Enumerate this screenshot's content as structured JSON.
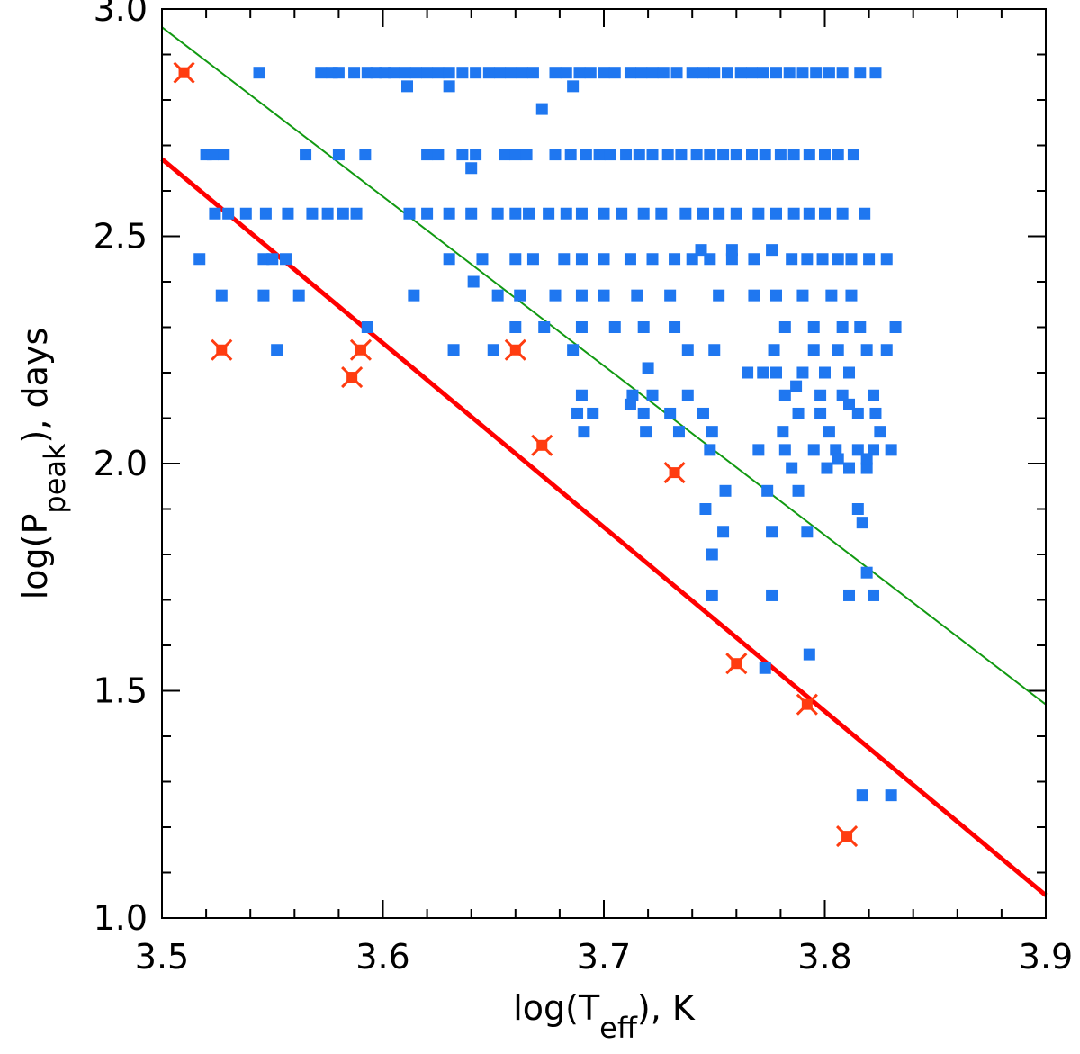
{
  "chart_data": {
    "type": "scatter",
    "title": "",
    "xlim": [
      3.5,
      3.9
    ],
    "ylim": [
      1.0,
      3.0
    ],
    "x_ticks": [
      "3.5",
      "3.6",
      "3.7",
      "3.8",
      "3.9"
    ],
    "y_ticks": [
      "1.0",
      "1.5",
      "2.0",
      "2.5",
      "3.0"
    ],
    "xlabel": {
      "pre": "log(T",
      "sub": "eff",
      "post": "), K"
    },
    "ylabel": {
      "pre": "log(P",
      "sub": "peak",
      "post": "), days"
    },
    "colors": {
      "blue": "#1f77f0",
      "red": "#ff3c10",
      "red_line": "#ff0000",
      "green_line": "#119911"
    },
    "lines": [
      {
        "name": "green-fit",
        "x": [
          3.5,
          3.9
        ],
        "y": [
          2.96,
          1.47
        ],
        "color": "#119911"
      },
      {
        "name": "red-fit",
        "x": [
          3.5,
          3.9
        ],
        "y": [
          2.67,
          1.05
        ],
        "color": "#ff0000"
      }
    ],
    "series": [
      {
        "name": "blue-squares",
        "marker": "square",
        "color": "#1f77f0",
        "rows": [
          {
            "y": 2.86,
            "x": [
              3.544,
              3.572,
              3.577,
              3.58,
              3.587,
              3.593,
              3.597,
              3.601,
              3.605,
              3.61,
              3.615,
              3.62,
              3.625,
              3.63,
              3.636,
              3.642,
              3.648,
              3.653,
              3.658,
              3.663,
              3.668,
              3.678,
              3.683,
              3.689,
              3.694,
              3.7,
              3.705,
              3.712,
              3.717,
              3.722,
              3.727,
              3.733,
              3.74,
              3.745,
              3.75,
              3.756,
              3.762,
              3.767,
              3.772,
              3.778,
              3.784,
              3.79,
              3.796,
              3.802,
              3.808,
              3.816,
              3.823
            ]
          },
          {
            "y": 2.68,
            "x": [
              3.52,
              3.523,
              3.528,
              3.565,
              3.58,
              3.592,
              3.62,
              3.625,
              3.636,
              3.642,
              3.655,
              3.66,
              3.665,
              3.678,
              3.685,
              3.692,
              3.698,
              3.703,
              3.71,
              3.716,
              3.722,
              3.729,
              3.735,
              3.742,
              3.748,
              3.754,
              3.76,
              3.767,
              3.773,
              3.78,
              3.786,
              3.793,
              3.8,
              3.806,
              3.813
            ]
          },
          {
            "y": 2.55,
            "x": [
              3.524,
              3.53,
              3.538,
              3.547,
              3.557,
              3.568,
              3.575,
              3.582,
              3.588,
              3.612,
              3.62,
              3.63,
              3.64,
              3.652,
              3.66,
              3.666,
              3.675,
              3.683,
              3.69,
              3.7,
              3.708,
              3.718,
              3.726,
              3.737,
              3.745,
              3.752,
              3.76,
              3.77,
              3.778,
              3.786,
              3.793,
              3.8,
              3.808,
              3.818
            ]
          },
          {
            "y": 2.45,
            "x": [
              3.517,
              3.546,
              3.55,
              3.556,
              3.63,
              3.645,
              3.66,
              3.668,
              3.682,
              3.69,
              3.7,
              3.712,
              3.722,
              3.732,
              3.74,
              3.748,
              3.758,
              3.768,
              3.785,
              3.792,
              3.799,
              3.806,
              3.812,
              3.82,
              3.828
            ]
          },
          {
            "y": 2.37,
            "x": [
              3.527,
              3.546,
              3.562,
              3.614,
              3.652,
              3.662,
              3.678,
              3.69,
              3.7,
              3.715,
              3.73,
              3.752,
              3.768,
              3.778,
              3.79,
              3.803,
              3.812
            ]
          },
          {
            "y": 2.3,
            "x": [
              3.593,
              3.66,
              3.673,
              3.69,
              3.705,
              3.718,
              3.732,
              3.782,
              3.795,
              3.808,
              3.816,
              3.832
            ]
          },
          {
            "y": 2.25,
            "x": [
              3.552,
              3.632,
              3.65,
              3.686,
              3.738,
              3.75,
              3.777,
              3.795,
              3.806,
              3.819,
              3.828
            ]
          },
          {
            "y": 2.2,
            "x": [
              3.765,
              3.772,
              3.778,
              3.79,
              3.8,
              3.811
            ]
          },
          {
            "y": 2.15,
            "x": [
              3.69,
              3.713,
              3.722,
              3.738,
              3.782,
              3.798,
              3.808,
              3.822
            ]
          },
          {
            "y": 2.11,
            "x": [
              3.688,
              3.695,
              3.718,
              3.73,
              3.745,
              3.788,
              3.798,
              3.815,
              3.823
            ]
          },
          {
            "y": 2.07,
            "x": [
              3.691,
              3.719,
              3.734,
              3.749,
              3.781,
              3.802,
              3.825
            ]
          },
          {
            "y": 2.03,
            "x": [
              3.748,
              3.77,
              3.782,
              3.795,
              3.805,
              3.815,
              3.822,
              3.83
            ]
          },
          {
            "y": 1.99,
            "x": [
              3.785,
              3.801,
              3.811,
              3.819
            ]
          },
          {
            "y": 1.94,
            "x": [
              3.755,
              3.774,
              3.788
            ]
          },
          {
            "y": 1.9,
            "x": [
              3.746,
              3.815
            ]
          },
          {
            "y": 1.87,
            "x": [
              3.817
            ]
          },
          {
            "y": 1.85,
            "x": [
              3.754,
              3.776,
              3.792
            ]
          },
          {
            "y": 1.8,
            "x": [
              3.749
            ]
          },
          {
            "y": 1.76,
            "x": [
              3.819
            ]
          },
          {
            "y": 1.71,
            "x": [
              3.749,
              3.776,
              3.811,
              3.822
            ]
          },
          {
            "y": 1.58,
            "x": [
              3.793
            ]
          },
          {
            "y": 1.55,
            "x": [
              3.773
            ]
          },
          {
            "y": 1.27,
            "x": [
              3.817,
              3.83
            ]
          },
          {
            "y": 2.83,
            "x": [
              3.611,
              3.63,
              3.686
            ]
          },
          {
            "y": 2.78,
            "x": [
              3.672
            ]
          },
          {
            "y": 2.65,
            "x": [
              3.64
            ]
          },
          {
            "y": 2.47,
            "x": [
              3.744,
              3.758,
              3.776
            ]
          },
          {
            "y": 2.4,
            "x": [
              3.641
            ]
          },
          {
            "y": 2.13,
            "x": [
              3.712,
              3.811
            ]
          },
          {
            "y": 2.21,
            "x": [
              3.72
            ]
          },
          {
            "y": 2.17,
            "x": [
              3.787
            ]
          },
          {
            "y": 2.01,
            "x": [
              3.806,
              3.819
            ]
          }
        ]
      },
      {
        "name": "red-stars",
        "marker": "square-x",
        "color": "#ff3c10",
        "points": [
          {
            "x": 3.51,
            "y": 2.86
          },
          {
            "x": 3.527,
            "y": 2.25
          },
          {
            "x": 3.586,
            "y": 2.19
          },
          {
            "x": 3.59,
            "y": 2.25
          },
          {
            "x": 3.66,
            "y": 2.25
          },
          {
            "x": 3.672,
            "y": 2.04
          },
          {
            "x": 3.732,
            "y": 1.98
          },
          {
            "x": 3.76,
            "y": 1.56
          },
          {
            "x": 3.792,
            "y": 1.47
          },
          {
            "x": 3.81,
            "y": 1.18
          }
        ]
      }
    ]
  }
}
